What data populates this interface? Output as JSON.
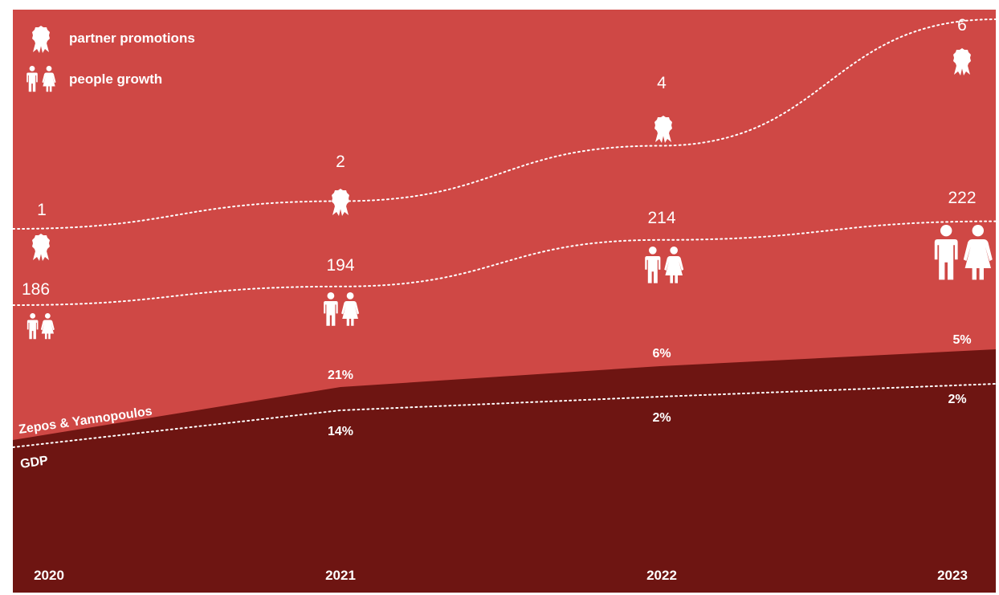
{
  "colors": {
    "background": "#cf4845",
    "area_dark": "#6e1512",
    "line": "#ffffff"
  },
  "legend": [
    {
      "icon": "award-ribbon-icon",
      "label": "partner promotions"
    },
    {
      "icon": "people-icon",
      "label": "people growth"
    }
  ],
  "chart_data": {
    "type": "area",
    "x": [
      "2020",
      "2021",
      "2022",
      "2023"
    ],
    "series": [
      {
        "name": "partner promotions",
        "kind": "dotted-line",
        "icon": "award-ribbon-icon",
        "values": [
          1,
          2,
          4,
          6
        ],
        "labels": [
          "1",
          "2",
          "4",
          "6"
        ]
      },
      {
        "name": "people growth",
        "kind": "dotted-line",
        "icon": "people-icon",
        "values": [
          186,
          194,
          214,
          222
        ],
        "labels": [
          "186",
          "194",
          "214",
          "222"
        ]
      },
      {
        "name": "Zepos & Yannopoulos",
        "kind": "area",
        "values": [
          null,
          21,
          6,
          5
        ],
        "labels": [
          "",
          "21%",
          "6%",
          "5%"
        ]
      },
      {
        "name": "GDP",
        "kind": "dotted-line",
        "values": [
          null,
          14,
          2,
          2
        ],
        "labels": [
          "",
          "14%",
          "2%",
          "2%"
        ]
      }
    ],
    "area_label": "Zepos & Yannopoulos",
    "gdp_label": "GDP",
    "grid": false,
    "legend_position": "top-left"
  }
}
